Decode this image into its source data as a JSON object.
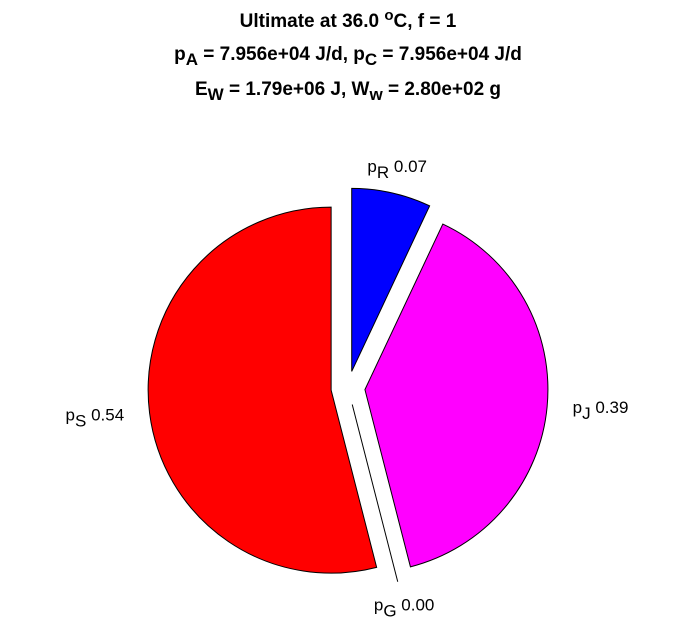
{
  "chart_data": {
    "type": "pie",
    "title_lines": [
      [
        {
          "text": "Ultimate at 36.0 "
        },
        {
          "sup": "o"
        },
        {
          "text": "C, f = 1"
        }
      ],
      [
        {
          "text": "p"
        },
        {
          "sub": "A"
        },
        {
          "text": " = 7.956e+04 J/d, p"
        },
        {
          "sub": "C"
        },
        {
          "text": " = 7.956e+04 J/d"
        }
      ],
      [
        {
          "text": "E"
        },
        {
          "sub": "W"
        },
        {
          "text": " = 1.79e+06 J, W"
        },
        {
          "sub": "w"
        },
        {
          "text": " = 2.80e+02 g"
        }
      ]
    ],
    "categories": [
      {
        "symbol": "p",
        "sub": "R"
      },
      {
        "symbol": "p",
        "sub": "J"
      },
      {
        "symbol": "p",
        "sub": "G"
      },
      {
        "symbol": "p",
        "sub": "S"
      }
    ],
    "values": [
      0.07,
      0.39,
      0.0,
      0.54
    ],
    "value_labels": [
      "0.07",
      "0.39",
      "0.00",
      "0.54"
    ],
    "colors": [
      "#0000ff",
      "#ff00ff",
      "#00ff00",
      "#ff0000"
    ],
    "explode": true
  }
}
